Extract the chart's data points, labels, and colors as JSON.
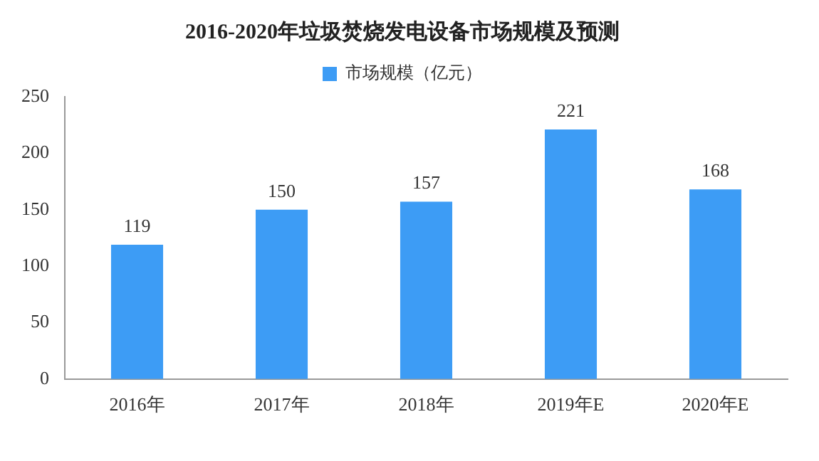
{
  "chart_data": {
    "type": "bar",
    "title": "2016-2020年垃圾焚烧发电设备市场规模及预测",
    "categories": [
      "2016年",
      "2017年",
      "2018年",
      "2019年E",
      "2020年E"
    ],
    "series": [
      {
        "name": "市场规模（亿元）",
        "color": "#3d9cf5",
        "values": [
          119,
          150,
          157,
          221,
          168
        ]
      }
    ],
    "ylim": [
      0,
      250
    ],
    "yticks": [
      0,
      50,
      100,
      150,
      200,
      250
    ],
    "grid": false,
    "legend": "top",
    "data_labels": true
  }
}
